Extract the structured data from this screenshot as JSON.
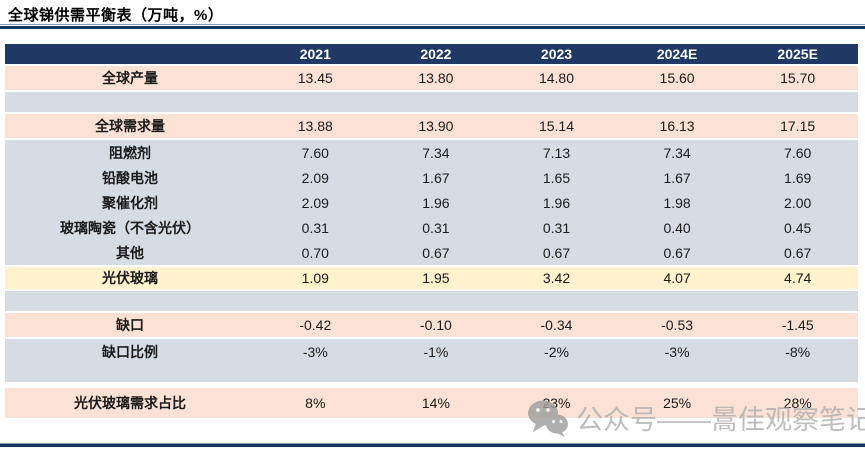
{
  "title": "全球锑供需平衡表（万吨，%）",
  "colors": {
    "header_navy": "#1F3864",
    "rule_navy": "#17365D",
    "rule_light": "#7F9BC0",
    "row_pink": "#FBE2D5",
    "row_gray": "#D6DCE4",
    "row_yellow": "#FFF2CC",
    "watermark_gray": "#9E9E9E"
  },
  "table": {
    "columns": [
      "2021",
      "2022",
      "2023",
      "2024E",
      "2025E"
    ],
    "rows": [
      {
        "kind": "pink",
        "label": "全球产量",
        "values": [
          "13.45",
          "13.80",
          "14.80",
          "15.60",
          "15.70"
        ]
      },
      {
        "kind": "spacer",
        "label": "",
        "values": []
      },
      {
        "kind": "pink",
        "label": "全球需求量",
        "values": [
          "13.88",
          "13.90",
          "15.14",
          "16.13",
          "17.15"
        ]
      },
      {
        "kind": "gray",
        "label": "阻燃剂",
        "values": [
          "7.60",
          "7.34",
          "7.13",
          "7.34",
          "7.60"
        ]
      },
      {
        "kind": "gray",
        "label": "铅酸电池",
        "values": [
          "2.09",
          "1.67",
          "1.65",
          "1.67",
          "1.69"
        ]
      },
      {
        "kind": "gray",
        "label": "聚催化剂",
        "values": [
          "2.09",
          "1.96",
          "1.96",
          "1.98",
          "2.00"
        ]
      },
      {
        "kind": "gray",
        "label": "玻璃陶瓷（不含光伏）",
        "values": [
          "0.31",
          "0.31",
          "0.31",
          "0.40",
          "0.45"
        ]
      },
      {
        "kind": "grayend",
        "label": "其他",
        "values": [
          "0.70",
          "0.67",
          "0.67",
          "0.67",
          "0.67"
        ]
      },
      {
        "kind": "yellow",
        "label": "光伏玻璃",
        "values": [
          "1.09",
          "1.95",
          "3.42",
          "4.07",
          "4.74"
        ]
      },
      {
        "kind": "spacer",
        "label": "",
        "values": []
      },
      {
        "kind": "pink",
        "label": "缺口",
        "values": [
          "-0.42",
          "-0.10",
          "-0.34",
          "-0.53",
          "-1.45"
        ]
      },
      {
        "kind": "gray",
        "label": "缺口比例",
        "values": [
          "-3%",
          "-1%",
          "-2%",
          "-3%",
          "-8%"
        ]
      },
      {
        "kind": "spacertail",
        "label": "",
        "values": []
      },
      {
        "kind": "pinkbig",
        "label": "光伏玻璃需求占比",
        "values": [
          "8%",
          "14%",
          "23%",
          "25%",
          "28%"
        ]
      }
    ]
  },
  "watermark": {
    "icon": "wechat-icon",
    "text": "公众号——暠佳观察笔记"
  }
}
